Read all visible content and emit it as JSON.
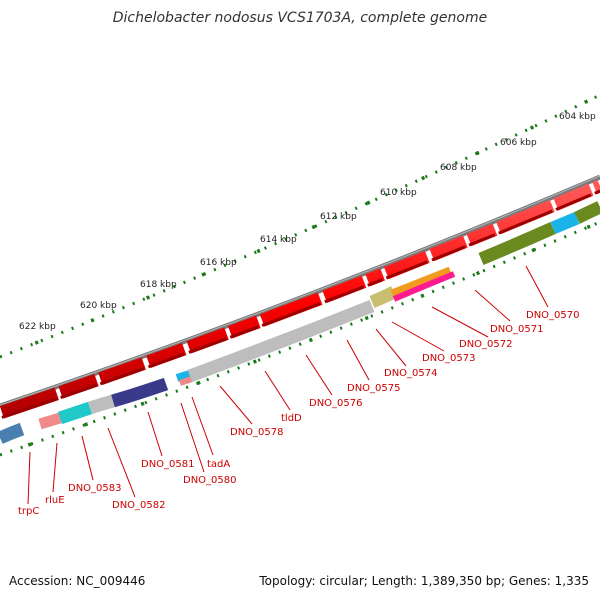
{
  "title": "Dichelobacter nodosus VCS1703A, complete genome",
  "accession": "Accession: NC_009446",
  "topology": "Topology: circular; Length: 1,389,350 bp; Genes: 1,335",
  "colors": {
    "backbone": "#7a7a7a",
    "feature_red": "#ff0000",
    "label_red": "#cc0000",
    "tick_green": "#1a7a1a",
    "rna_gray": "#bdbdbd"
  },
  "kbp_labels": [
    "604 kbp",
    "606 kbp",
    "608 kbp",
    "610 kbp",
    "612 kbp",
    "614 kbp",
    "616 kbp",
    "618 kbp",
    "620 kbp",
    "622 kbp"
  ],
  "gene_labels": [
    "DNO_0570",
    "DNO_0571",
    "DNO_0572",
    "DNO_0573",
    "DNO_0574",
    "DNO_0575",
    "DNO_0576",
    "tldD",
    "DNO_0578",
    "tadA",
    "DNO_0580",
    "DNO_0581",
    "DNO_0582",
    "DNO_0583",
    "rluE",
    "trpC"
  ]
}
